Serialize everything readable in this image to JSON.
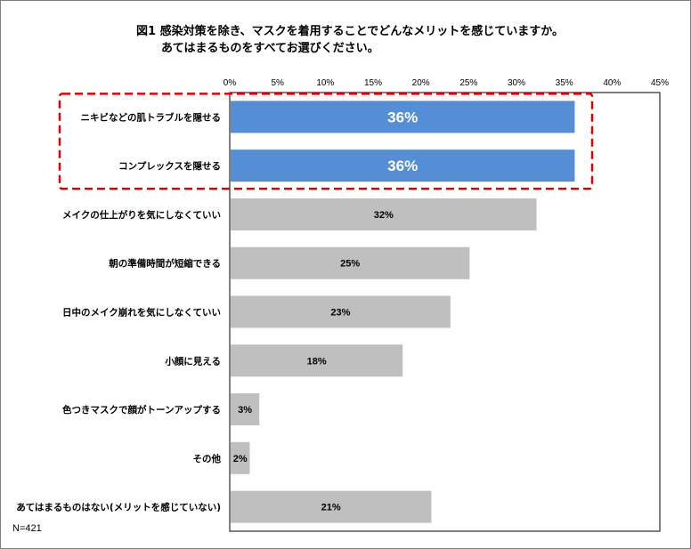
{
  "title": {
    "line1": "図1  感染対策を除き、マスクを着用することでどんなメリットを感じていますか。",
    "line2": "あてはまるものをすべてお選びください。"
  },
  "sample_note": "N=421",
  "colors": {
    "highlight_bar": "#558ED5",
    "normal_bar": "#BFBFBF",
    "highlight_box": "#E00000",
    "plot_border": "#000000"
  },
  "chart_data": {
    "type": "bar",
    "orientation": "horizontal",
    "categories": [
      "ニキビなどの肌トラブルを隠せる",
      "コンプレックスを隠せる",
      "メイクの仕上がりを気にしなくていい",
      "朝の準備時間が短縮できる",
      "日中のメイク崩れを気にしなくていい",
      "小顔に見える",
      "色つきマスクで顔がトーンアップする",
      "その他",
      "あてはまるものはない(メリットを感じていない)"
    ],
    "values": [
      36,
      36,
      32,
      25,
      23,
      18,
      3,
      2,
      21
    ],
    "data_labels": [
      "36%",
      "36%",
      "32%",
      "25%",
      "23%",
      "18%",
      "3%",
      "2%",
      "21%"
    ],
    "highlighted": [
      true,
      true,
      false,
      false,
      false,
      false,
      false,
      false,
      false
    ],
    "xlim": [
      0,
      45
    ],
    "x_ticks": [
      "0%",
      "5%",
      "10%",
      "15%",
      "20%",
      "25%",
      "30%",
      "35%",
      "40%",
      "45%"
    ],
    "x_axis_position": "top",
    "grid": false,
    "legend": "none"
  }
}
